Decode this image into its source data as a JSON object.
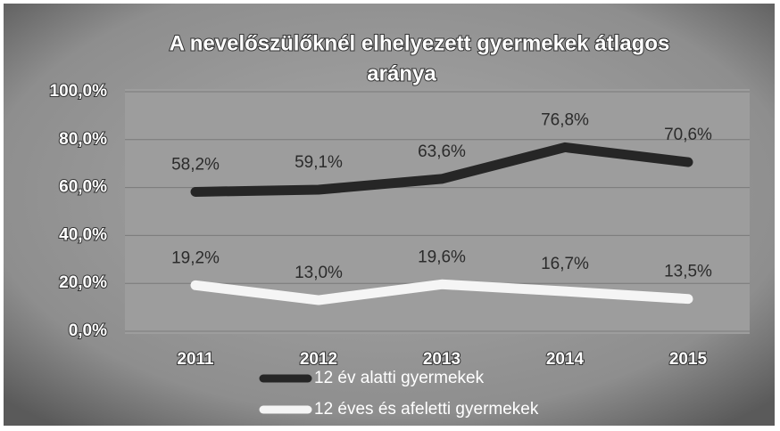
{
  "chart_data": {
    "type": "line",
    "title": [
      "A nevelőszülőknél elhelyezett gyermekek átlagos",
      "aránya"
    ],
    "categories": [
      "2011",
      "2012",
      "2013",
      "2014",
      "2015"
    ],
    "series": [
      {
        "name": "12 év alatti gyermekek",
        "color": "#262626",
        "values": [
          58.2,
          59.1,
          63.6,
          76.8,
          70.6
        ],
        "value_labels": [
          "58,2%",
          "59,1%",
          "63,6%",
          "76,8%",
          "70,6%"
        ]
      },
      {
        "name": "12 éves és afeletti gyermekek",
        "color": "#f5f5f5",
        "values": [
          19.2,
          13.0,
          19.6,
          16.7,
          13.5
        ],
        "value_labels": [
          "19,2%",
          "13,0%",
          "19,6%",
          "16,7%",
          "13,5%"
        ]
      }
    ],
    "ylim": [
      0,
      100
    ],
    "yticks": [
      {
        "value": 0,
        "label": "0,0%"
      },
      {
        "value": 20,
        "label": "20,0%"
      },
      {
        "value": 40,
        "label": "40,0%"
      },
      {
        "value": 60,
        "label": "60,0%"
      },
      {
        "value": 80,
        "label": "80,0%"
      },
      {
        "value": 100,
        "label": "100,0%"
      }
    ],
    "grid": true,
    "legend": "bottom"
  }
}
